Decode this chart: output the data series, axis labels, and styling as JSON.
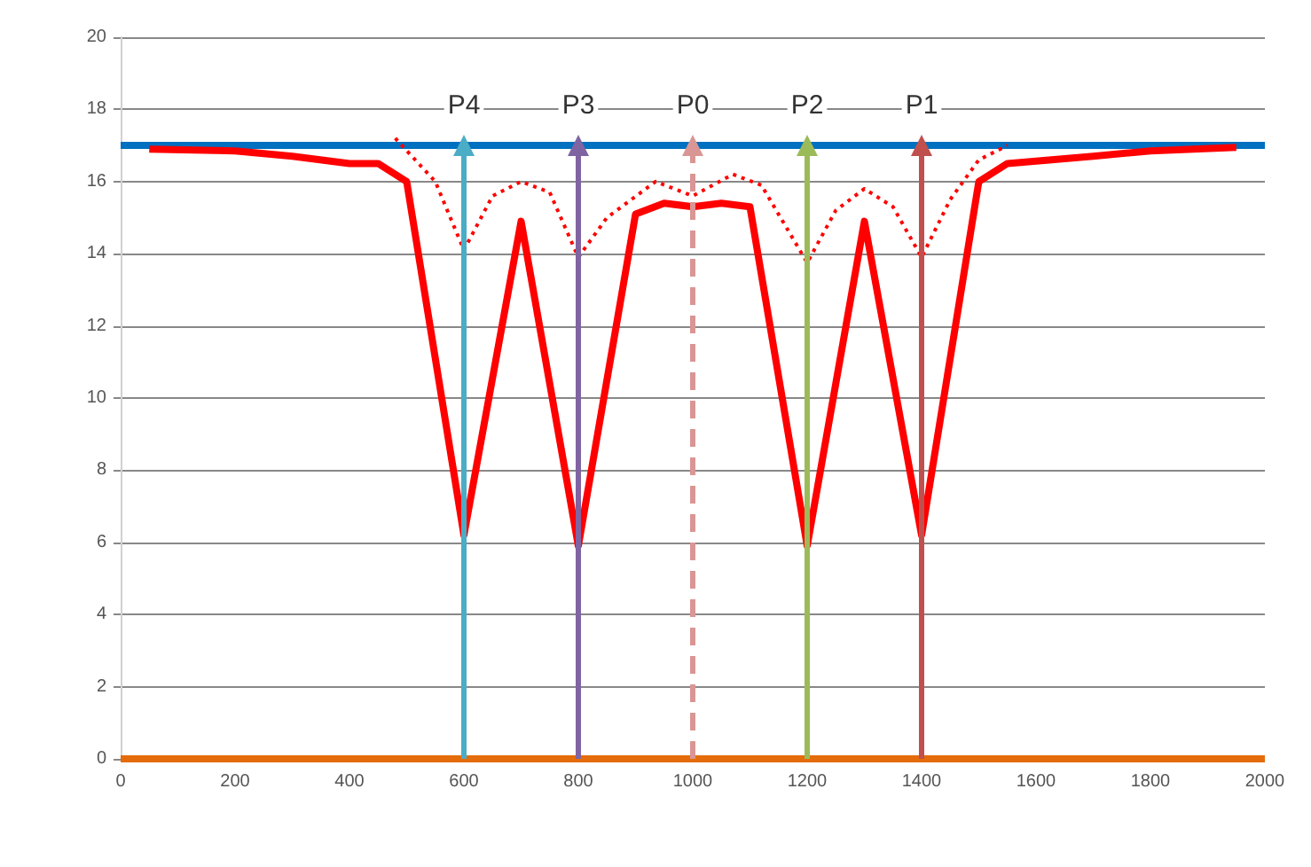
{
  "chart_data": {
    "type": "line",
    "xlim": [
      0,
      2000
    ],
    "xticks": [
      0,
      200,
      400,
      600,
      800,
      1000,
      1200,
      1400,
      1600,
      1800,
      2000
    ],
    "ylim": [
      0,
      20
    ],
    "yticks": [
      0,
      2,
      4,
      6,
      8,
      10,
      12,
      14,
      16,
      18,
      20
    ],
    "grid": "y",
    "legend": false,
    "marker": "none",
    "series": [
      {
        "color": "#0070c0",
        "x": [
          0,
          2000
        ],
        "values": [
          17,
          17
        ],
        "line_style": "solid"
      },
      {
        "color": "#e46c0a",
        "x": [
          0,
          2000
        ],
        "values": [
          0,
          0
        ],
        "line_style": "solid"
      },
      {
        "color": "#ff0000",
        "x": [
          50,
          200,
          300,
          400,
          450,
          500,
          600,
          700,
          800,
          900,
          950,
          1000,
          1050,
          1100,
          1200,
          1300,
          1400,
          1500,
          1550,
          1700,
          1800,
          1950
        ],
        "values": [
          16.9,
          16.85,
          16.7,
          16.5,
          16.5,
          16.0,
          6.2,
          14.9,
          5.9,
          15.1,
          15.4,
          15.3,
          15.4,
          15.3,
          5.9,
          14.9,
          6.2,
          16.0,
          16.5,
          16.7,
          16.85,
          16.95
        ],
        "line_style": "solid"
      },
      {
        "color": "#ff0000",
        "x": [
          480,
          550,
          600,
          650,
          700,
          750,
          800,
          850,
          935,
          1000,
          1070,
          1120,
          1200,
          1250,
          1300,
          1350,
          1400,
          1450,
          1500,
          1550
        ],
        "values": [
          17.2,
          16.0,
          14.1,
          15.6,
          16.0,
          15.7,
          13.9,
          15.0,
          16.0,
          15.6,
          16.2,
          15.9,
          13.75,
          15.2,
          15.8,
          15.3,
          13.9,
          15.5,
          16.6,
          17.0
        ],
        "line_style": "dotted"
      },
      {
        "name": "P4",
        "color": "#4bacc6",
        "x": [
          600,
          600
        ],
        "values": [
          0,
          17
        ],
        "line_style": "solid",
        "marker": "triangle"
      },
      {
        "name": "P3",
        "color": "#8064a2",
        "x": [
          800,
          800
        ],
        "values": [
          0,
          17
        ],
        "line_style": "solid",
        "marker": "triangle"
      },
      {
        "name": "P0",
        "color": "#d99694",
        "x": [
          1000,
          1000
        ],
        "values": [
          0,
          17
        ],
        "line_style": "dashed",
        "marker": "triangle"
      },
      {
        "name": "P2",
        "color": "#9bbb59",
        "x": [
          1200,
          1200
        ],
        "values": [
          0,
          17
        ],
        "line_style": "solid",
        "marker": "triangle"
      },
      {
        "name": "P1",
        "color": "#c0504d",
        "x": [
          1400,
          1400
        ],
        "values": [
          0,
          17
        ],
        "line_style": "solid",
        "marker": "triangle"
      }
    ]
  }
}
